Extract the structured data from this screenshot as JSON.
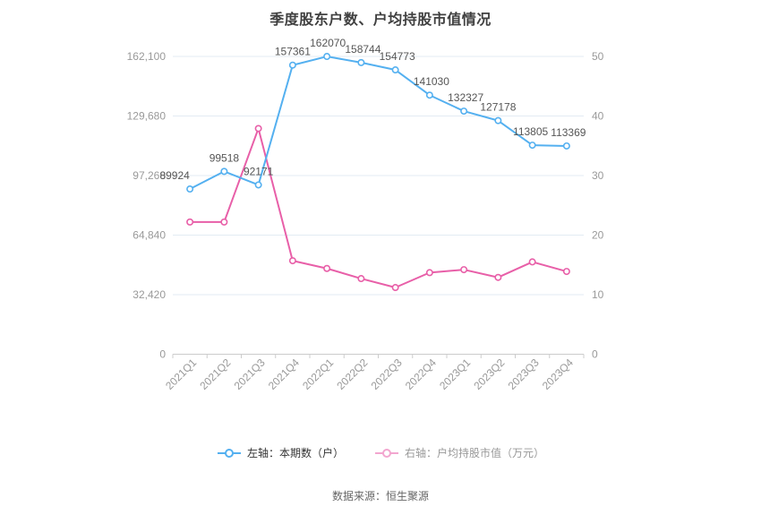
{
  "title": "季度股东户数、户均持股市值情况",
  "source": "数据来源：恒生聚源",
  "legend": [
    {
      "label": "左轴：本期数（户）",
      "color": "#54b0f0",
      "dimmed": false
    },
    {
      "label": "右轴：户均持股市值（万元）",
      "color": "#e85fa8",
      "dimmed": true
    }
  ],
  "chart_data": {
    "type": "line",
    "title": "季度股东户数、户均持股市值情况",
    "categories": [
      "2021Q1",
      "2021Q2",
      "2021Q3",
      "2021Q4",
      "2022Q1",
      "2022Q2",
      "2022Q3",
      "2022Q4",
      "2023Q1",
      "2023Q2",
      "2023Q3",
      "2023Q4"
    ],
    "series": [
      {
        "name": "左轴：本期数（户）",
        "axis": "left",
        "color": "#54b0f0",
        "values": [
          89924,
          99518,
          92171,
          157361,
          162070,
          158744,
          154773,
          141030,
          132327,
          127178,
          113805,
          113369
        ],
        "show_labels": true
      },
      {
        "name": "右轴：户均持股市值（万元）",
        "axis": "right",
        "color": "#e85fa8",
        "values": [
          22.2,
          22.2,
          37.9,
          15.7,
          14.4,
          12.7,
          11.2,
          13.7,
          14.2,
          12.9,
          15.5,
          13.9
        ],
        "show_labels": false
      }
    ],
    "left_axis": {
      "min": 0,
      "max": 162100,
      "ticks": [
        0,
        32420,
        64840,
        97260,
        129680,
        162100
      ],
      "tick_labels": [
        "0",
        "32,420",
        "64,840",
        "97,260",
        "129,680",
        "162,100"
      ]
    },
    "right_axis": {
      "min": 0,
      "max": 50,
      "ticks": [
        0,
        10,
        20,
        30,
        40,
        50
      ],
      "tick_labels": [
        "0",
        "10",
        "20",
        "30",
        "40",
        "50"
      ]
    },
    "grid": true,
    "legend_position": "bottom",
    "x_label_rotation": -45
  },
  "colors": {
    "grid": "#e3ebf3",
    "axis": "#cccccc",
    "tick_text": "#999999",
    "data_label": "#555555",
    "title_text": "#404040",
    "legend_active_text": "#333333",
    "legend_dim_text": "#999999",
    "source_text": "#666666"
  }
}
